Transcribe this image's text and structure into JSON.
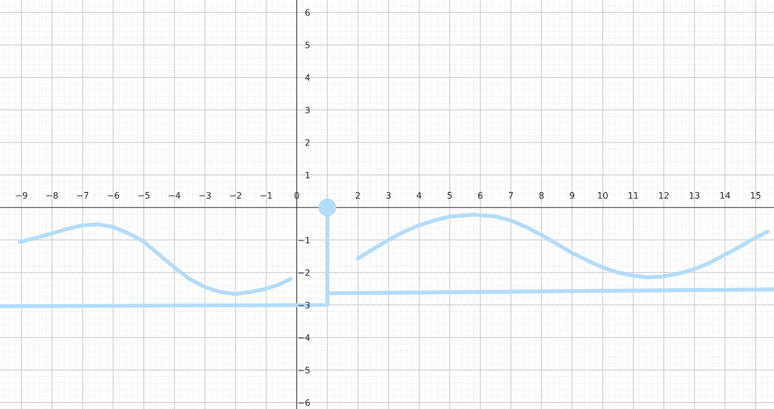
{
  "chart_data": {
    "type": "line",
    "xlim": [
      -9.7,
      15.6
    ],
    "ylim": [
      -6.2,
      6.38
    ],
    "xticks": [
      -9,
      -8,
      -7,
      -6,
      -5,
      -4,
      -3,
      -2,
      -1,
      0,
      {
        "value": 1,
        "label": null
      },
      2,
      3,
      4,
      5,
      6,
      7,
      8,
      9,
      10,
      11,
      12,
      13,
      14,
      15
    ],
    "yticks": [
      -6,
      -5,
      -4,
      -3,
      -2,
      -1,
      {
        "value": 0,
        "label": null
      },
      1,
      2,
      3,
      4,
      5,
      6
    ],
    "grid": true,
    "line_style": "solid",
    "series": [
      {
        "color": "#b3dcfa",
        "x": [
          -9.05,
          -8.5,
          -8,
          -7.5,
          -7,
          -6.5,
          -6,
          -5.5,
          -5,
          -4.5,
          -4,
          -3.5,
          -3,
          -2.5,
          -2,
          -1.5,
          -1,
          -0.6,
          -0.2,
          null,
          2,
          2.5,
          3,
          3.5,
          4,
          4.5,
          5,
          5.8,
          6.5,
          7,
          7.5,
          8,
          8.5,
          9,
          9.5,
          10,
          10.5,
          11,
          11.5,
          12,
          12.5,
          13,
          13.5,
          14,
          14.5,
          15,
          15.4
        ],
        "values": [
          -1.06,
          -0.93,
          -0.8,
          -0.66,
          -0.55,
          -0.52,
          -0.6,
          -0.8,
          -1.05,
          -1.45,
          -1.85,
          -2.2,
          -2.45,
          -2.6,
          -2.66,
          -2.6,
          -2.5,
          -2.38,
          -2.2,
          null,
          -1.57,
          -1.28,
          -1.0,
          -0.75,
          -0.55,
          -0.4,
          -0.28,
          -0.22,
          -0.28,
          -0.4,
          -0.6,
          -0.85,
          -1.12,
          -1.4,
          -1.63,
          -1.85,
          -2.0,
          -2.1,
          -2.15,
          -2.12,
          -2.03,
          -1.9,
          -1.7,
          -1.45,
          -1.2,
          -0.93,
          -0.74
        ]
      },
      {
        "color": "#b3dcfa",
        "x": [
          -9.7,
          1,
          1,
          1,
          15.6
        ],
        "values": [
          -3.04,
          -3.0,
          0,
          -2.64,
          -2.52
        ]
      },
      {
        "type": "scatter",
        "marker": "circle",
        "color": "#b3dcfa",
        "x": [
          1
        ],
        "values": [
          0
        ]
      }
    ]
  }
}
